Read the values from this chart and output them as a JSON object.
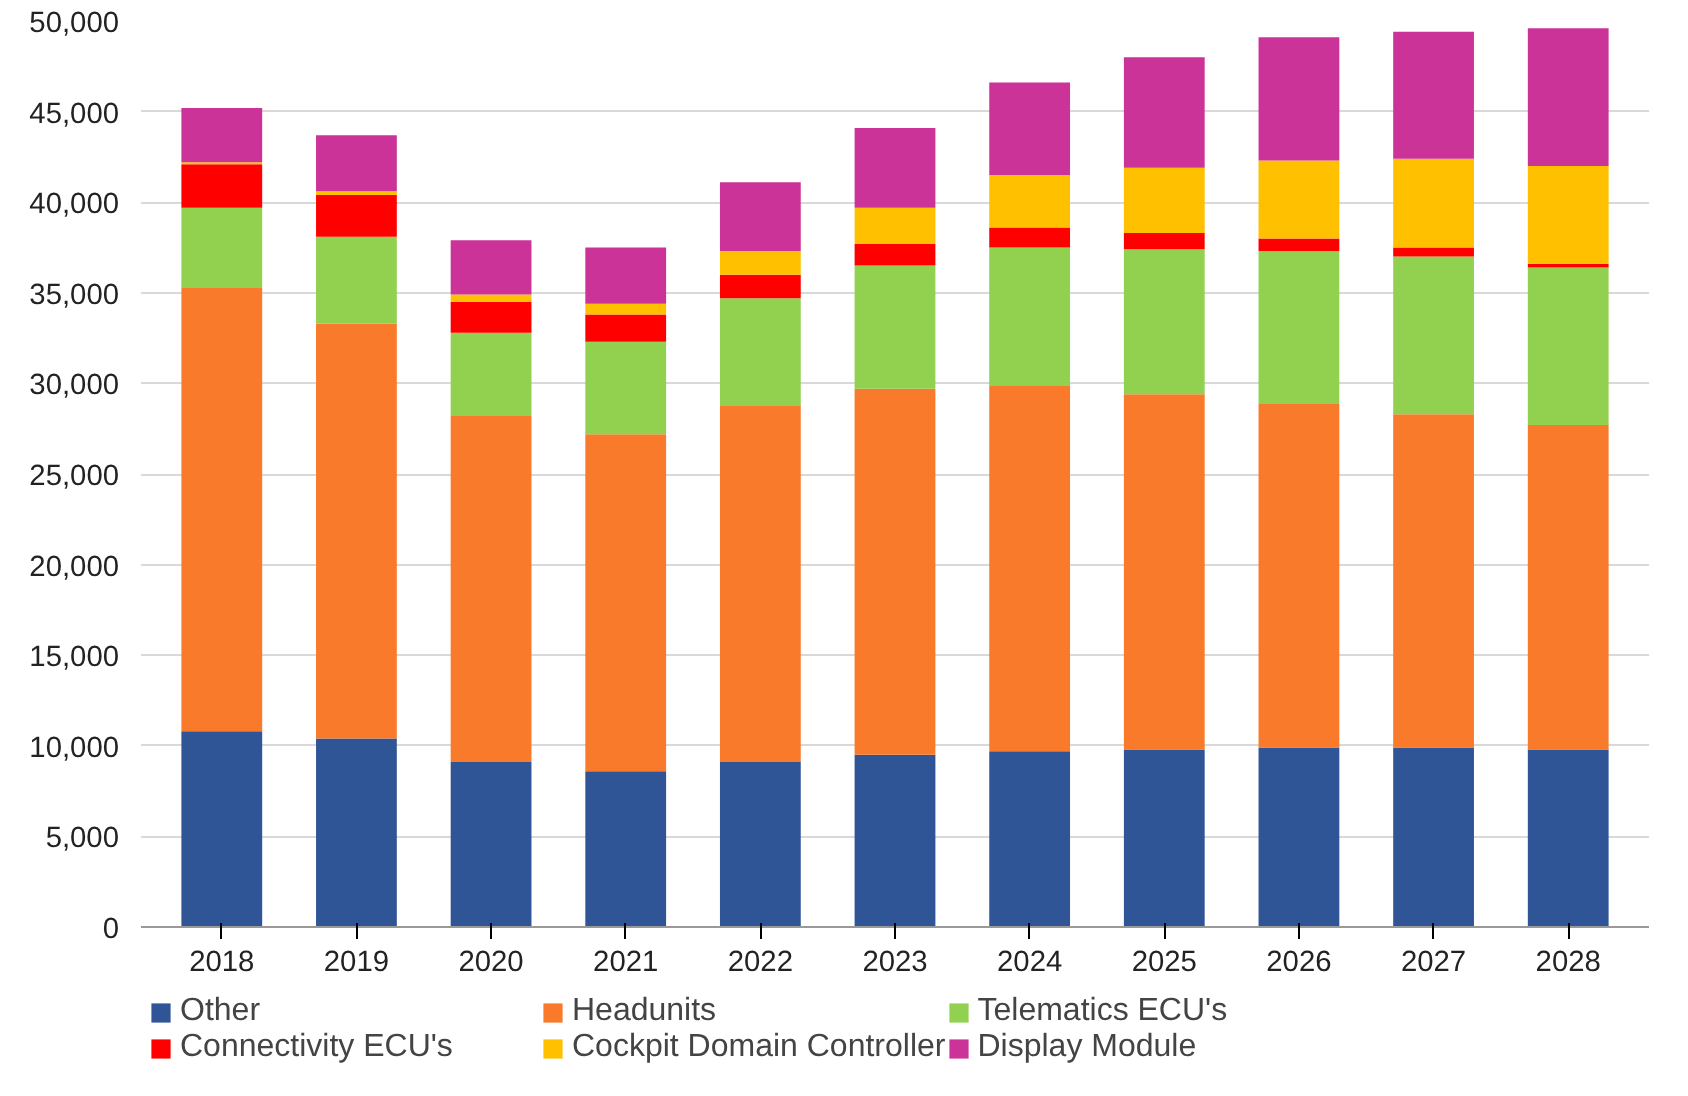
{
  "chart_data": {
    "type": "bar",
    "stacked": true,
    "categories": [
      "2018",
      "2019",
      "2020",
      "2021",
      "2022",
      "2023",
      "2024",
      "2025",
      "2026",
      "2027",
      "2028"
    ],
    "series": [
      {
        "name": "Other",
        "color": "#2f5597",
        "values": [
          10800,
          10400,
          9100,
          8600,
          9100,
          9500,
          9700,
          9800,
          9900,
          9900,
          9800
        ]
      },
      {
        "name": "Headunits",
        "color": "#f97a2a",
        "values": [
          24500,
          22900,
          19100,
          18600,
          19700,
          20200,
          20200,
          19600,
          19000,
          18400,
          17900
        ]
      },
      {
        "name": "Telematics ECU's",
        "color": "#92d050",
        "values": [
          4400,
          4800,
          4600,
          5100,
          5900,
          6800,
          7600,
          8000,
          8400,
          8700,
          8700
        ]
      },
      {
        "name": "Connectivity ECU's",
        "color": "#ff0000",
        "values": [
          2400,
          2300,
          1700,
          1500,
          1300,
          1200,
          1100,
          900,
          700,
          500,
          200
        ]
      },
      {
        "name": "Cockpit Domain Controller",
        "color": "#ffc000",
        "values": [
          100,
          200,
          400,
          600,
          1300,
          2000,
          2900,
          3600,
          4300,
          4900,
          5400
        ]
      },
      {
        "name": "Display Module",
        "color": "#cc3399",
        "values": [
          3000,
          3100,
          3000,
          3100,
          3800,
          4400,
          5100,
          6100,
          6800,
          7000,
          7600
        ]
      }
    ],
    "ylim": [
      0,
      50000
    ],
    "yticks": [
      {
        "value": 0,
        "label": "0"
      },
      {
        "value": 5000,
        "label": "5,000"
      },
      {
        "value": 10000,
        "label": "10,000"
      },
      {
        "value": 15000,
        "label": "15,000"
      },
      {
        "value": 20000,
        "label": "20,000"
      },
      {
        "value": 25000,
        "label": "25,000"
      },
      {
        "value": 30000,
        "label": "30,000"
      },
      {
        "value": 35000,
        "label": "35,000"
      },
      {
        "value": 40000,
        "label": "40,000"
      },
      {
        "value": 45000,
        "label": "45,000"
      },
      {
        "value": 50000,
        "label": "50,000"
      }
    ],
    "grid": "y",
    "legend": "bottom"
  }
}
